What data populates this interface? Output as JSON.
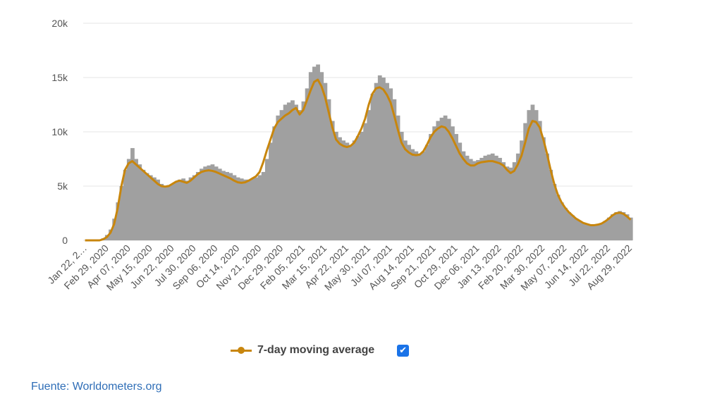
{
  "chart_data": {
    "type": "bar",
    "title": "",
    "xlabel": "",
    "ylabel": "",
    "ylim": [
      0,
      20000
    ],
    "y_ticks": [
      0,
      5000,
      10000,
      15000,
      20000
    ],
    "y_tick_labels": [
      "0",
      "5k",
      "10k",
      "15k",
      "20k"
    ],
    "x_tick_labels": [
      "Jan 22, 2…",
      "Feb 29, 2020",
      "Apr 07, 2020",
      "May 15, 2020",
      "Jun 22, 2020",
      "Jul 30, 2020",
      "Sep 06, 2020",
      "Oct 14, 2020",
      "Nov 21, 2020",
      "Dec 29, 2020",
      "Feb 05, 2021",
      "Mar 15, 2021",
      "Apr 22, 2021",
      "May 30, 2021",
      "Jul 07, 2021",
      "Aug 14, 2021",
      "Sep 21, 2021",
      "Oct 29, 2021",
      "Dec 06, 2021",
      "Jan 13, 2022",
      "Feb 20, 2022",
      "Mar 30, 2022",
      "May 07, 2022",
      "Jun 14, 2022",
      "Jul 22, 2022",
      "Aug 29, 2022"
    ],
    "grid": true,
    "legend_position": "bottom",
    "series": [
      {
        "name": "",
        "kind": "bar",
        "color": "#a0a0a0",
        "values": [
          0,
          0,
          0,
          0,
          0,
          200,
          500,
          1000,
          2000,
          3500,
          5000,
          6500,
          7500,
          8500,
          7500,
          7000,
          6500,
          6200,
          6000,
          5800,
          5600,
          5200,
          5000,
          5100,
          5200,
          5400,
          5600,
          5700,
          5500,
          5800,
          6000,
          6300,
          6600,
          6800,
          6900,
          7000,
          6800,
          6600,
          6400,
          6300,
          6200,
          6000,
          5800,
          5700,
          5600,
          5600,
          5700,
          5800,
          6000,
          6300,
          7500,
          9000,
          10500,
          11500,
          12000,
          12500,
          12700,
          12900,
          12500,
          12000,
          12800,
          14000,
          15500,
          16000,
          16200,
          15500,
          14500,
          13000,
          11000,
          10000,
          9500,
          9200,
          9000,
          8800,
          9200,
          9600,
          10000,
          10800,
          12000,
          13500,
          14500,
          15200,
          15000,
          14500,
          14000,
          13000,
          11500,
          10000,
          9200,
          8800,
          8400,
          8200,
          8000,
          8200,
          8800,
          9800,
          10500,
          11000,
          11300,
          11500,
          11200,
          10500,
          9800,
          9000,
          8200,
          7800,
          7500,
          7300,
          7400,
          7600,
          7800,
          7900,
          8000,
          7800,
          7600,
          7200,
          6800,
          6700,
          7200,
          8000,
          9200,
          10800,
          12000,
          12500,
          12000,
          11000,
          9500,
          8000,
          6500,
          5200,
          4200,
          3500,
          3000,
          2600,
          2300,
          2000,
          1800,
          1600,
          1500,
          1400,
          1400,
          1500,
          1600,
          1800,
          2100,
          2400,
          2600,
          2700,
          2600,
          2400,
          2100
        ]
      },
      {
        "name": "7-day moving average",
        "kind": "line",
        "color": "#c8860d",
        "values": [
          0,
          0,
          0,
          0,
          0,
          100,
          300,
          700,
          1500,
          3000,
          5000,
          6500,
          7100,
          7300,
          7000,
          6700,
          6400,
          6100,
          5800,
          5500,
          5200,
          5000,
          4950,
          5000,
          5200,
          5400,
          5500,
          5400,
          5300,
          5500,
          5800,
          6100,
          6300,
          6400,
          6450,
          6400,
          6300,
          6150,
          6000,
          5850,
          5700,
          5500,
          5350,
          5300,
          5350,
          5500,
          5700,
          5900,
          6300,
          7200,
          8300,
          9300,
          10300,
          10900,
          11200,
          11500,
          11700,
          12000,
          12200,
          11600,
          12000,
          12900,
          13800,
          14600,
          14800,
          14200,
          13200,
          11800,
          10400,
          9300,
          8900,
          8700,
          8600,
          8700,
          9000,
          9600,
          10300,
          11200,
          12500,
          13500,
          14000,
          14100,
          13900,
          13400,
          12700,
          11500,
          10200,
          9000,
          8400,
          8100,
          7900,
          7850,
          7900,
          8200,
          8800,
          9500,
          10000,
          10300,
          10500,
          10400,
          10000,
          9400,
          8700,
          8000,
          7500,
          7100,
          6900,
          6900,
          7100,
          7200,
          7250,
          7300,
          7300,
          7200,
          7100,
          6900,
          6500,
          6200,
          6400,
          7000,
          7800,
          9000,
          10300,
          11000,
          10900,
          10400,
          9300,
          8000,
          6500,
          5200,
          4200,
          3500,
          3000,
          2600,
          2300,
          2000,
          1800,
          1600,
          1500,
          1400,
          1400,
          1450,
          1550,
          1750,
          2000,
          2300,
          2500,
          2550,
          2450,
          2200,
          1900
        ]
      }
    ]
  },
  "legend": {
    "label": "7-day moving average",
    "checkbox_checked": true,
    "checkbox_color": "#1a73e8"
  },
  "source_text": "Fuente: Worldometers.org",
  "colors": {
    "bar": "#a0a0a0",
    "line": "#c8860d",
    "grid": "#e6e6e6",
    "source_link": "#2f6eb7"
  }
}
